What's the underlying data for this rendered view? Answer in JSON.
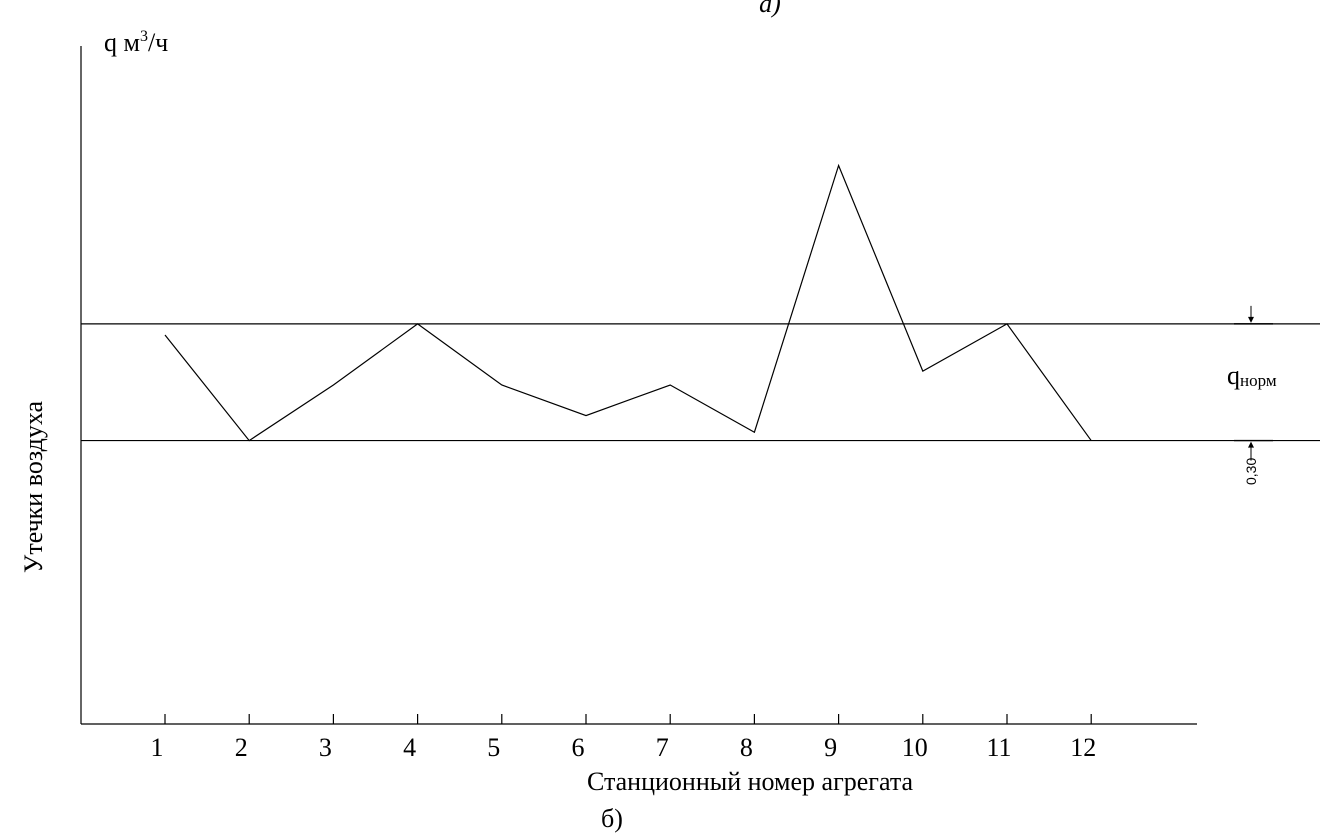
{
  "chart_data": {
    "type": "line",
    "top_label": "а)",
    "bottom_label": "б)",
    "y_unit_label": "q м",
    "y_unit_superscript": "3",
    "y_unit_suffix": "/ч",
    "ylabel": "Утечки воздуха",
    "xlabel": "Станционный номер агрегата",
    "categories": [
      "1",
      "2",
      "3",
      "4",
      "5",
      "6",
      "7",
      "8",
      "9",
      "10",
      "11",
      "12"
    ],
    "series": [
      {
        "values": [
          0.68,
          0.3,
          0.5,
          0.72,
          0.5,
          0.39,
          0.5,
          0.33,
          1.29,
          0.55,
          0.72,
          0.3
        ]
      }
    ],
    "reference_lines": {
      "lower": 0.3,
      "upper": 0.72
    },
    "band_label_main": "q",
    "band_label_sub": "норм",
    "band_value_label": "0,30",
    "ylim": [
      -0.72,
      1.72
    ],
    "grid": false,
    "legend": "none"
  }
}
